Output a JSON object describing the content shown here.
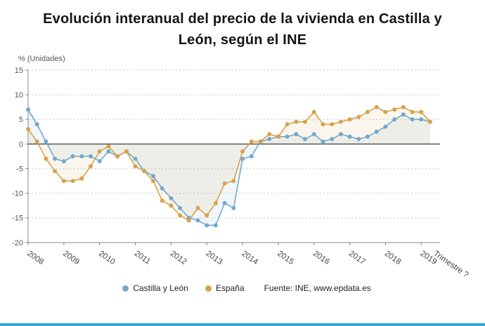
{
  "page": {
    "accent_color": "#35a7dd"
  },
  "chart_data": {
    "type": "line",
    "title": "Evolución interanual del precio de la vivienda en Castilla y León, según el INE",
    "unit_label": "% (Unidades)",
    "x_axis_note": "Trimestre ?",
    "x_year_labels": [
      "2008",
      "2009",
      "2010",
      "2011",
      "2012",
      "2013",
      "2014",
      "2015",
      "2016",
      "2017",
      "2018",
      "2019"
    ],
    "points_per_year": 4,
    "ylim": [
      -20,
      15
    ],
    "yticks": [
      15,
      10,
      5,
      0,
      -5,
      -10,
      -15,
      -20
    ],
    "grid": "dashed horizontal",
    "legend_position": "bottom",
    "source": "Fuente: INE, www.epdata.es",
    "series": [
      {
        "name": "Castilla y León",
        "color": "#72a9cc",
        "values": [
          7,
          4,
          0.5,
          -3,
          -3.5,
          -2.5,
          -2.5,
          -2.5,
          -3.5,
          -1.5,
          -2.5,
          -1.5,
          -3,
          -5.5,
          -6.5,
          -9,
          -11,
          -13,
          -15,
          -15.5,
          -16.5,
          -16.5,
          -12,
          -13,
          -3,
          -2.5,
          0.5,
          1,
          1.5,
          1.5,
          2,
          1,
          2,
          0.5,
          1,
          2,
          1.5,
          1,
          1.5,
          2.5,
          3.5,
          5,
          6,
          5,
          5,
          4.5
        ]
      },
      {
        "name": "España",
        "color": "#d7a24b",
        "values": [
          3,
          0.5,
          -3,
          -5.5,
          -7.5,
          -7.5,
          -7,
          -4.5,
          -1.5,
          -0.5,
          -2.5,
          -1.5,
          -4.5,
          -5.5,
          -7.5,
          -11.5,
          -12.5,
          -14.5,
          -15.5,
          -13,
          -14.5,
          -12,
          -8,
          -7.5,
          -1.5,
          0.5,
          0.5,
          2,
          1.5,
          4,
          4.5,
          4.5,
          6.5,
          4,
          4,
          4.5,
          5,
          5.5,
          6.5,
          7.5,
          6.5,
          7,
          7.5,
          6.5,
          6.5,
          4.5
        ]
      }
    ]
  }
}
